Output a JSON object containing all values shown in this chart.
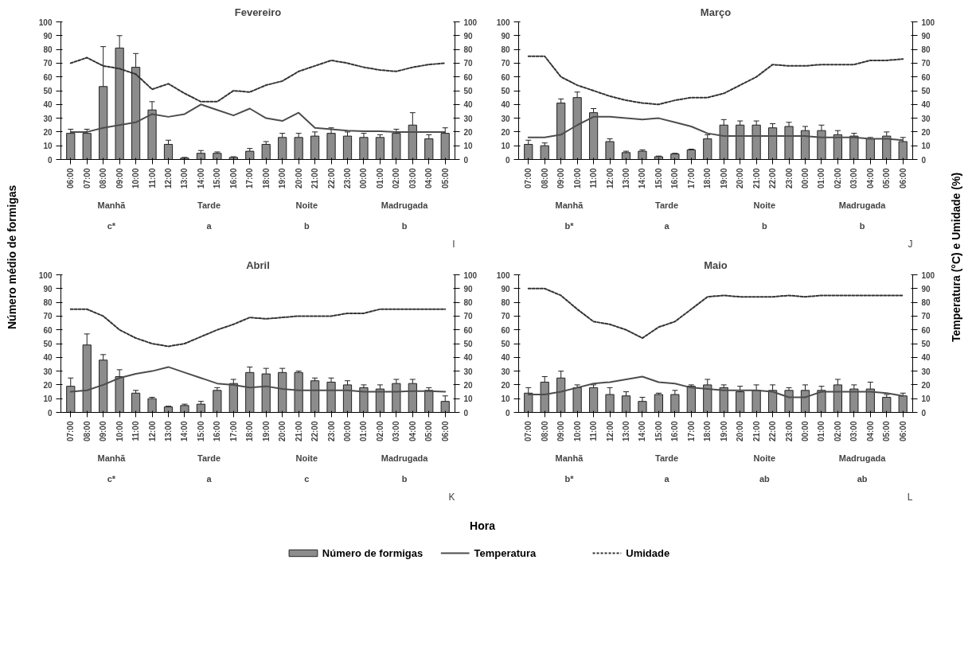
{
  "chart_data": [
    {
      "type": "bar",
      "title": "Fevereiro",
      "xlabel": "Hora",
      "ylabel": "Número médio de formigas",
      "y2label": "Temperatura (°C) e Umidade (%)",
      "legend": "bottom",
      "categories": [
        "06:00",
        "07:00",
        "08:00",
        "09:00",
        "10:00",
        "11:00",
        "12:00",
        "13:00",
        "14:00",
        "15:00",
        "16:00",
        "17:00",
        "18:00",
        "19:00",
        "20:00",
        "21:00",
        "22:00",
        "23:00",
        "00:00",
        "01:00",
        "02:00",
        "03:00",
        "04:00",
        "05:00"
      ],
      "ylim": [
        0,
        100
      ],
      "yticks": [
        0,
        10,
        20,
        30,
        40,
        50,
        60,
        70,
        80,
        90,
        100
      ],
      "y2lim": [
        0,
        100
      ],
      "y2ticks": [
        0,
        10,
        20,
        30,
        40,
        50,
        60,
        70,
        80,
        90,
        100
      ],
      "series": [
        {
          "name": "Número de formigas",
          "color": "#8c8c8c",
          "values": [
            19,
            19,
            53,
            81,
            67,
            36,
            11,
            1,
            4.5,
            4.5,
            1.5,
            6,
            11,
            16,
            16,
            17,
            19,
            17,
            16,
            16,
            19,
            25,
            15,
            19
          ],
          "errors": [
            3,
            3,
            29,
            9,
            10,
            6,
            3,
            0.5,
            2,
            1,
            0.5,
            2,
            2,
            3,
            3,
            3,
            4,
            3,
            3,
            2,
            3,
            9,
            3,
            4
          ]
        },
        {
          "name": "Temperatura",
          "type": "line",
          "axis": "y2",
          "color": "#4d4d4d",
          "line_style": "solid",
          "values": [
            20,
            20,
            23,
            25,
            27,
            33,
            31,
            33,
            40,
            36,
            32,
            37,
            30,
            28,
            34,
            23,
            22,
            21,
            20.5,
            20.5,
            20,
            20,
            20,
            20
          ]
        },
        {
          "name": "Umidade",
          "type": "line",
          "axis": "y2",
          "color": "#333333",
          "line_style": "dotted",
          "values": [
            70,
            74,
            68,
            66,
            62,
            51,
            55,
            48,
            42,
            42,
            50,
            49,
            54,
            57,
            64,
            68,
            72,
            70,
            67,
            65,
            64,
            67,
            69,
            70
          ]
        }
      ],
      "annotations": [
        "Manhã",
        "Tarde",
        "Noite",
        "Madrugada",
        "c*",
        "a",
        "b",
        "b",
        "I"
      ]
    },
    {
      "type": "bar",
      "title": "Março",
      "categories": [
        "07:00",
        "08:00",
        "09:00",
        "10:00",
        "11:00",
        "12:00",
        "13:00",
        "14:00",
        "15:00",
        "16:00",
        "17:00",
        "18:00",
        "19:00",
        "20:00",
        "21:00",
        "22:00",
        "23:00",
        "00:00",
        "01:00",
        "02:00",
        "03:00",
        "04:00",
        "05:00",
        "06:00"
      ],
      "ylim": [
        0,
        100
      ],
      "yticks": [
        0,
        10,
        20,
        30,
        40,
        50,
        60,
        70,
        80,
        90,
        100
      ],
      "y2lim": [
        0,
        100
      ],
      "y2ticks": [
        0,
        10,
        20,
        30,
        40,
        50,
        60,
        70,
        80,
        90,
        100
      ],
      "series": [
        {
          "color": "#8c8c8c",
          "values": [
            11,
            10,
            41,
            45,
            34,
            13,
            5,
            6,
            2,
            4,
            7,
            15,
            25,
            25,
            25,
            23,
            24,
            21,
            21,
            18,
            17,
            15,
            17,
            13
          ],
          "errors": [
            3,
            2,
            3,
            4,
            3,
            2,
            1,
            1,
            0.5,
            0.5,
            0.5,
            3,
            4,
            3,
            3,
            3,
            3,
            3,
            4,
            3,
            2,
            1,
            3,
            3
          ]
        },
        {
          "type": "line",
          "axis": "y2",
          "color": "#4d4d4d",
          "line_style": "solid",
          "values": [
            16,
            16,
            18,
            25,
            31,
            31,
            30,
            29,
            30,
            27,
            24,
            19,
            17,
            17,
            17,
            17,
            17,
            17,
            16,
            16,
            16,
            15,
            15,
            14
          ]
        },
        {
          "type": "line",
          "axis": "y2",
          "color": "#333333",
          "line_style": "dotted",
          "values": [
            75,
            75,
            60,
            54,
            50,
            46,
            43,
            41,
            40,
            43,
            45,
            45,
            48,
            54,
            60,
            69,
            68,
            68,
            69,
            69,
            69,
            72,
            72,
            73
          ]
        }
      ],
      "annotations": [
        "Manhã",
        "Tarde",
        "Noite",
        "Madrugada",
        "b*",
        "a",
        "b",
        "b",
        "J"
      ]
    },
    {
      "type": "bar",
      "title": "Abril",
      "categories": [
        "07:00",
        "08:00",
        "09:00",
        "10:00",
        "11:00",
        "12:00",
        "13:00",
        "14:00",
        "15:00",
        "16:00",
        "17:00",
        "18:00",
        "19:00",
        "20:00",
        "21:00",
        "22:00",
        "23:00",
        "00:00",
        "01:00",
        "02:00",
        "03:00",
        "04:00",
        "05:00",
        "06:00"
      ],
      "ylim": [
        0,
        100
      ],
      "yticks": [
        0,
        10,
        20,
        30,
        40,
        50,
        60,
        70,
        80,
        90,
        100
      ],
      "y2lim": [
        0,
        100
      ],
      "y2ticks": [
        0,
        10,
        20,
        30,
        40,
        50,
        60,
        70,
        80,
        90,
        100
      ],
      "series": [
        {
          "color": "#8c8c8c",
          "values": [
            19,
            49,
            38,
            26,
            14,
            10,
            4,
            5,
            6,
            16,
            21,
            29,
            28,
            29,
            29,
            23,
            22,
            20,
            18,
            17,
            21,
            21,
            16,
            8
          ],
          "errors": [
            6,
            8,
            4,
            5,
            2,
            1,
            0.5,
            1,
            2,
            2,
            3,
            4,
            4,
            3,
            1,
            2,
            3,
            3,
            2,
            3,
            3,
            3,
            2,
            4
          ]
        },
        {
          "type": "line",
          "axis": "y2",
          "color": "#4d4d4d",
          "line_style": "solid",
          "values": [
            15,
            16,
            20,
            25,
            28,
            30,
            33,
            29,
            25,
            21,
            20,
            18,
            19,
            17,
            16,
            16,
            16,
            16,
            15,
            15,
            15,
            15.5,
            15.5,
            15
          ]
        },
        {
          "type": "line",
          "axis": "y2",
          "color": "#333333",
          "line_style": "dotted",
          "values": [
            75,
            75,
            70,
            60,
            54,
            50,
            48,
            50,
            55,
            60,
            64,
            69,
            68,
            69,
            70,
            70,
            70,
            72,
            72,
            75,
            75,
            75,
            75,
            75
          ]
        }
      ],
      "annotations": [
        "Manhã",
        "Tarde",
        "Noite",
        "Madrugada",
        "c*",
        "a",
        "c",
        "b",
        "K"
      ]
    },
    {
      "type": "bar",
      "title": "Maio",
      "categories": [
        "07:00",
        "08:00",
        "09:00",
        "10:00",
        "11:00",
        "12:00",
        "13:00",
        "14:00",
        "15:00",
        "16:00",
        "17:00",
        "18:00",
        "19:00",
        "20:00",
        "21:00",
        "22:00",
        "23:00",
        "00:00",
        "01:00",
        "02:00",
        "03:00",
        "04:00",
        "05:00",
        "06:00"
      ],
      "ylim": [
        0,
        100
      ],
      "yticks": [
        0,
        10,
        20,
        30,
        40,
        50,
        60,
        70,
        80,
        90,
        100
      ],
      "y2lim": [
        0,
        100
      ],
      "y2ticks": [
        0,
        10,
        20,
        30,
        40,
        50,
        60,
        70,
        80,
        90,
        100
      ],
      "series": [
        {
          "color": "#8c8c8c",
          "values": [
            14,
            22,
            25,
            18,
            18,
            13,
            12,
            8,
            13,
            13,
            19,
            20,
            18,
            15,
            16,
            16,
            16,
            16,
            16,
            20,
            17,
            17,
            11,
            12
          ],
          "errors": [
            4,
            4,
            5,
            2,
            2,
            5,
            3,
            3,
            1,
            3,
            1,
            4,
            2,
            4,
            4,
            4,
            2,
            4,
            3,
            4,
            3,
            5,
            2,
            2
          ]
        },
        {
          "type": "line",
          "axis": "y2",
          "color": "#4d4d4d",
          "line_style": "solid",
          "values": [
            13,
            13,
            15,
            18,
            21,
            22,
            24,
            26,
            22,
            21,
            18,
            17,
            16,
            16,
            16,
            15,
            11,
            11,
            15,
            15,
            15,
            15,
            14,
            12
          ]
        },
        {
          "type": "line",
          "axis": "y2",
          "color": "#333333",
          "line_style": "dotted",
          "values": [
            90,
            90,
            85,
            75,
            66,
            64,
            60,
            54,
            62,
            66,
            75,
            84,
            85,
            84,
            84,
            84,
            85,
            84,
            85,
            85,
            85,
            85,
            85,
            85
          ]
        }
      ],
      "annotations": [
        "Manhã",
        "Tarde",
        "Noite",
        "Madrugada",
        "b*",
        "a",
        "ab",
        "ab",
        "L"
      ]
    }
  ]
}
